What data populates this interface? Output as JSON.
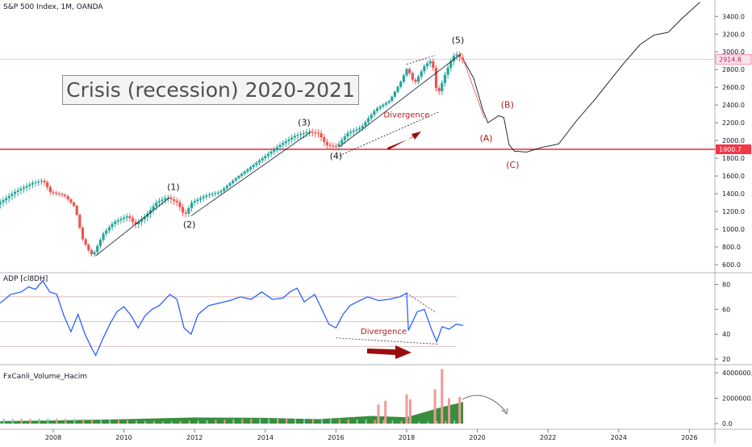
{
  "panels": {
    "main_title": "S&P 500 Index, 1M, OANDA",
    "adp_title": "ADP [cl8DH]",
    "volume_title": "FxCanli_Volume_Hacim",
    "headline": "Crisis (recession) 2020-2021"
  },
  "price_tags": {
    "current": "2914.8",
    "support": "1900.7"
  },
  "annotations": {
    "waves": [
      "(1)",
      "(2)",
      "(3)",
      "(4)",
      "(5)",
      "(A)",
      "(B)",
      "(C)"
    ],
    "divergence_price": "Divergence",
    "divergence_adp": "Divergence"
  },
  "colors": {
    "up_candle": "#26a69a",
    "down_candle": "#ef5350",
    "support_line": "#f23645",
    "adp_line": "#2962ff",
    "annotation_text": "#b71c1c",
    "arrow": "#9b0d0d",
    "volume_area": "#388e3c"
  },
  "chart_data": [
    {
      "type": "candlestick",
      "title": "S&P 500 Index, 1M, OANDA",
      "x_ticks": [
        "2008",
        "2010",
        "2012",
        "2014",
        "2016",
        "2018",
        "2020",
        "2022",
        "2024",
        "2026"
      ],
      "y_ticks": [
        "600.0",
        "800.0",
        "1000.0",
        "1200.0",
        "1400.0",
        "1600.0",
        "1800.0",
        "2000.0",
        "2200.0",
        "2400.0",
        "2600.0",
        "2800.0",
        "3000.0",
        "3200.0",
        "3400.0"
      ],
      "ylim": [
        560,
        3540
      ],
      "xlim": [
        2006.5,
        2027.0
      ],
      "price_path": [
        [
          2006.5,
          1280
        ],
        [
          2007.0,
          1420
        ],
        [
          2007.5,
          1520
        ],
        [
          2007.8,
          1550
        ],
        [
          2008.0,
          1420
        ],
        [
          2008.4,
          1380
        ],
        [
          2008.7,
          1250
        ],
        [
          2008.9,
          900
        ],
        [
          2009.1,
          750
        ],
        [
          2009.2,
          700
        ],
        [
          2009.5,
          950
        ],
        [
          2009.8,
          1080
        ],
        [
          2010.2,
          1150
        ],
        [
          2010.4,
          1050
        ],
        [
          2010.7,
          1150
        ],
        [
          2011.0,
          1300
        ],
        [
          2011.3,
          1360
        ],
        [
          2011.6,
          1300
        ],
        [
          2011.8,
          1150
        ],
        [
          2012.0,
          1300
        ],
        [
          2012.4,
          1380
        ],
        [
          2012.8,
          1420
        ],
        [
          2013.2,
          1560
        ],
        [
          2013.6,
          1680
        ],
        [
          2014.0,
          1800
        ],
        [
          2014.5,
          1950
        ],
        [
          2014.9,
          2050
        ],
        [
          2015.3,
          2100
        ],
        [
          2015.6,
          2080
        ],
        [
          2015.8,
          1950
        ],
        [
          2016.1,
          1930
        ],
        [
          2016.4,
          2080
        ],
        [
          2016.8,
          2150
        ],
        [
          2017.2,
          2350
        ],
        [
          2017.6,
          2450
        ],
        [
          2017.9,
          2650
        ],
        [
          2018.1,
          2820
        ],
        [
          2018.3,
          2640
        ],
        [
          2018.6,
          2850
        ],
        [
          2018.8,
          2910
        ],
        [
          2018.95,
          2500
        ],
        [
          2019.2,
          2780
        ],
        [
          2019.4,
          2950
        ],
        [
          2019.55,
          2980
        ],
        [
          2019.6,
          2915
        ]
      ],
      "projection": [
        [
          2019.6,
          2915
        ],
        [
          2019.9,
          2700
        ],
        [
          2020.15,
          2350
        ],
        [
          2020.3,
          2200
        ],
        [
          2020.6,
          2280
        ],
        [
          2020.75,
          2260
        ],
        [
          2020.9,
          1950
        ],
        [
          2021.05,
          1880
        ],
        [
          2021.4,
          1870
        ],
        [
          2021.8,
          1920
        ],
        [
          2022.3,
          1960
        ],
        [
          2022.8,
          2220
        ],
        [
          2023.3,
          2450
        ],
        [
          2023.7,
          2650
        ],
        [
          2024.1,
          2850
        ],
        [
          2024.6,
          3080
        ],
        [
          2025.0,
          3190
        ],
        [
          2025.4,
          3220
        ],
        [
          2025.8,
          3380
        ],
        [
          2026.3,
          3560
        ]
      ],
      "horizontal_levels": [
        1900.7,
        2914.8
      ]
    },
    {
      "type": "line",
      "title": "ADP [cl8DH]",
      "y_ticks": [
        "20",
        "40",
        "60",
        "80"
      ],
      "ylim": [
        16,
        88
      ],
      "series": [
        {
          "values": [
            [
              2006.5,
              65
            ],
            [
              2006.8,
              72
            ],
            [
              2007.1,
              74
            ],
            [
              2007.3,
              78
            ],
            [
              2007.5,
              76
            ],
            [
              2007.7,
              83
            ],
            [
              2007.9,
              74
            ],
            [
              2008.1,
              72
            ],
            [
              2008.3,
              55
            ],
            [
              2008.5,
              42
            ],
            [
              2008.7,
              56
            ],
            [
              2008.9,
              40
            ],
            [
              2009.1,
              28
            ],
            [
              2009.2,
              23
            ],
            [
              2009.4,
              36
            ],
            [
              2009.6,
              48
            ],
            [
              2009.8,
              58
            ],
            [
              2010.0,
              62
            ],
            [
              2010.2,
              55
            ],
            [
              2010.4,
              45
            ],
            [
              2010.6,
              55
            ],
            [
              2010.8,
              60
            ],
            [
              2011.0,
              63
            ],
            [
              2011.3,
              72
            ],
            [
              2011.5,
              68
            ],
            [
              2011.7,
              45
            ],
            [
              2011.9,
              40
            ],
            [
              2012.1,
              56
            ],
            [
              2012.4,
              63
            ],
            [
              2012.7,
              65
            ],
            [
              2013.0,
              67
            ],
            [
              2013.3,
              70
            ],
            [
              2013.6,
              68
            ],
            [
              2013.9,
              74
            ],
            [
              2014.2,
              68
            ],
            [
              2014.5,
              69
            ],
            [
              2014.7,
              74
            ],
            [
              2014.9,
              77
            ],
            [
              2015.1,
              66
            ],
            [
              2015.4,
              72
            ],
            [
              2015.6,
              60
            ],
            [
              2015.8,
              48
            ],
            [
              2016.0,
              45
            ],
            [
              2016.2,
              56
            ],
            [
              2016.4,
              63
            ],
            [
              2016.6,
              66
            ],
            [
              2016.9,
              70
            ],
            [
              2017.2,
              67
            ],
            [
              2017.5,
              68
            ],
            [
              2017.8,
              70
            ],
            [
              2018.0,
              73
            ],
            [
              2018.05,
              43
            ],
            [
              2018.3,
              58
            ],
            [
              2018.5,
              60
            ],
            [
              2018.7,
              44
            ],
            [
              2018.85,
              34
            ],
            [
              2019.0,
              46
            ],
            [
              2019.2,
              44
            ],
            [
              2019.4,
              48
            ],
            [
              2019.6,
              47
            ]
          ]
        }
      ],
      "divergence_points": [
        [
          2018.0,
          73
        ],
        [
          2018.8,
          58
        ],
        [
          2016.0,
          37
        ],
        [
          2018.9,
          32
        ]
      ]
    },
    {
      "type": "bar",
      "title": "FxCanli_Volume_Hacim",
      "y_ticks": [
        "0.0",
        "2000000.0",
        "4000000.0"
      ],
      "ylim": [
        -500000,
        4400000
      ],
      "spikes": [
        [
          2018.0,
          2300000
        ],
        [
          2018.1,
          1900000
        ],
        [
          2018.8,
          2700000
        ],
        [
          2019.0,
          4300000
        ],
        [
          2019.2,
          2000000
        ],
        [
          2019.5,
          2100000
        ],
        [
          2017.2,
          1500000
        ],
        [
          2017.4,
          1800000
        ]
      ],
      "volume_area": [
        [
          2006.5,
          200000
        ],
        [
          2008.0,
          250000
        ],
        [
          2010.0,
          350000
        ],
        [
          2012.0,
          480000
        ],
        [
          2014.0,
          450000
        ],
        [
          2015.5,
          350000
        ],
        [
          2017.0,
          600000
        ],
        [
          2018.0,
          500000
        ],
        [
          2019.0,
          1300000
        ],
        [
          2019.6,
          1700000
        ]
      ]
    }
  ]
}
